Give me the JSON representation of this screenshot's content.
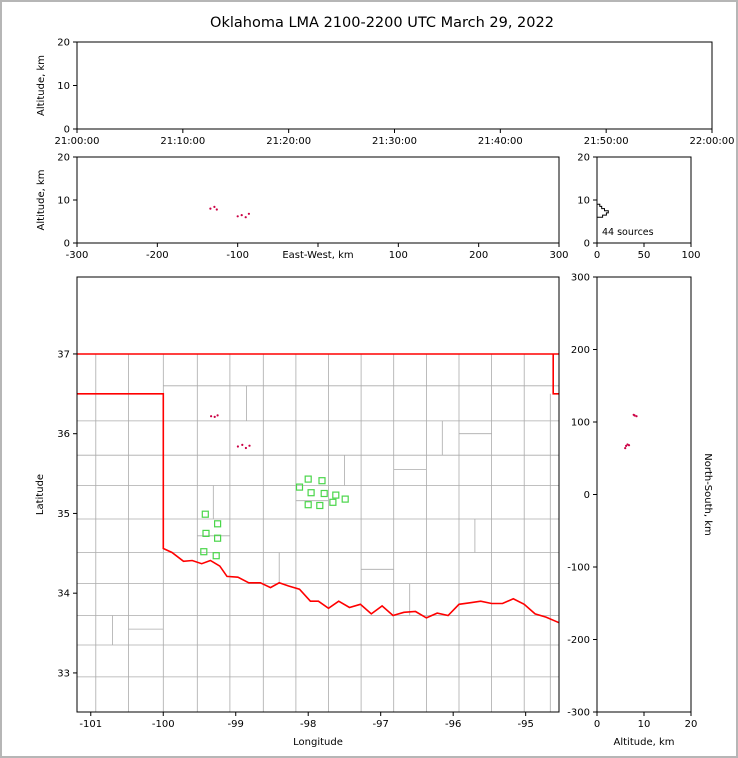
{
  "title": "Oklahoma LMA 2100-2200 UTC March 29, 2022",
  "colors": {
    "background": "#ffffff",
    "outer_border": "#b6b6b6",
    "axis": "#000000",
    "county_line": "#ababab",
    "state_border": "#ff0000",
    "station_marker": "#4ad64a",
    "source_point": "#cc0044",
    "histogram_line": "#000000"
  },
  "chart_data": {
    "type": "scatter",
    "title": "Oklahoma LMA 2100-2200 UTC March 29, 2022",
    "source_count_label": "44 sources",
    "stations": [
      {
        "lon": -98.0,
        "lat": 35.43
      },
      {
        "lon": -97.81,
        "lat": 35.41
      },
      {
        "lon": -98.12,
        "lat": 35.33
      },
      {
        "lon": -97.96,
        "lat": 35.26
      },
      {
        "lon": -97.78,
        "lat": 35.25
      },
      {
        "lon": -97.62,
        "lat": 35.23
      },
      {
        "lon": -98.0,
        "lat": 35.11
      },
      {
        "lon": -97.84,
        "lat": 35.1
      },
      {
        "lon": -97.66,
        "lat": 35.14
      },
      {
        "lon": -97.49,
        "lat": 35.18
      },
      {
        "lon": -99.42,
        "lat": 34.99
      },
      {
        "lon": -99.25,
        "lat": 34.87
      },
      {
        "lon": -99.41,
        "lat": 34.75
      },
      {
        "lon": -99.25,
        "lat": 34.69
      },
      {
        "lon": -99.44,
        "lat": 34.52
      },
      {
        "lon": -99.27,
        "lat": 34.47
      }
    ],
    "sources": [
      {
        "lon": -99.34,
        "lat": 36.22,
        "ew_km": -134,
        "ns_km": 109,
        "alt_km": 8.0
      },
      {
        "lon": -99.29,
        "lat": 36.21,
        "ew_km": -129,
        "ns_km": 108,
        "alt_km": 8.4
      },
      {
        "lon": -99.25,
        "lat": 36.23,
        "ew_km": -126,
        "ns_km": 110,
        "alt_km": 7.8
      },
      {
        "lon": -98.97,
        "lat": 35.84,
        "ew_km": -100,
        "ns_km": 67,
        "alt_km": 6.2
      },
      {
        "lon": -98.91,
        "lat": 35.86,
        "ew_km": -95,
        "ns_km": 69,
        "alt_km": 6.5
      },
      {
        "lon": -98.86,
        "lat": 35.82,
        "ew_km": -90,
        "ns_km": 64,
        "alt_km": 6.0
      },
      {
        "lon": -98.81,
        "lat": 35.85,
        "ew_km": -86,
        "ns_km": 68,
        "alt_km": 6.8
      }
    ],
    "histogram": {
      "orientation": "horizontal",
      "alt_bin_edges_km": [
        6,
        6.5,
        7,
        7.5,
        8,
        8.5,
        9
      ],
      "counts": [
        6,
        10,
        12,
        8,
        5,
        3
      ]
    },
    "panels": [
      {
        "id": "time-altitude",
        "box": [
          75,
          40,
          710,
          127
        ],
        "xlim": [
          0,
          3600
        ],
        "xticks": [
          0,
          600,
          1200,
          1800,
          2400,
          3000,
          3600
        ],
        "xtick_labels": [
          "21:00:00",
          "21:10:00",
          "21:20:00",
          "21:30:00",
          "21:40:00",
          "21:50:00",
          "22:00:00"
        ],
        "ylim": [
          0,
          20
        ],
        "yticks": [
          0,
          10,
          20
        ],
        "ylabel": "Altitude, km",
        "scatter": []
      },
      {
        "id": "ew-altitude",
        "box": [
          75,
          155,
          557,
          241
        ],
        "xlim": [
          -300,
          300
        ],
        "xticks": [
          -300,
          -200,
          -100,
          0,
          100,
          200,
          300
        ],
        "xtick_labels": [
          "-300",
          "-200",
          "-100",
          "",
          "100",
          "200",
          "300"
        ],
        "xlabel": "East-West, km",
        "xlabel_dy": 15,
        "ylim": [
          0,
          20
        ],
        "yticks": [
          0,
          10,
          20
        ],
        "ylabel": "Altitude, km",
        "scatter": [
          {
            "from": "sources",
            "xf": "ew_km",
            "yf": "alt_km",
            "shape": "dot"
          }
        ]
      },
      {
        "id": "altitude-histogram",
        "box": [
          595,
          155,
          689,
          241
        ],
        "xlim": [
          0,
          100
        ],
        "xticks": [
          0,
          50,
          100
        ],
        "ylim": [
          0,
          20
        ],
        "yticks": [
          0,
          10,
          20
        ],
        "histogram": true
      },
      {
        "id": "map",
        "box": [
          75,
          275,
          557,
          710
        ],
        "xlim": [
          -101.19,
          -94.54
        ],
        "xticks": [
          -101,
          -100,
          -99,
          -98,
          -97,
          -96,
          -95
        ],
        "xlabel": "Longitude",
        "xlabel_dy": 33,
        "ylim": [
          32.51,
          37.965
        ],
        "yticks": [
          33,
          34,
          35,
          36,
          37
        ],
        "ylabel": "Latitude",
        "ylabel_dx": 34,
        "map": true,
        "scatter": [
          {
            "from": "stations",
            "xf": "lon",
            "yf": "lat",
            "shape": "square"
          },
          {
            "from": "sources",
            "xf": "lon",
            "yf": "lat",
            "shape": "dot"
          }
        ]
      },
      {
        "id": "ns-altitude",
        "box": [
          595,
          275,
          689,
          710
        ],
        "xlim": [
          0,
          20
        ],
        "xticks": [
          0,
          10,
          20
        ],
        "xlabel": "Altitude, km",
        "xlabel_dy": 33,
        "ylim": [
          -300,
          300
        ],
        "yticks": [
          -300,
          -200,
          -100,
          0,
          100,
          200,
          300
        ],
        "ylabel": "North-South, km",
        "ylabel_side": "right",
        "ylabel_dx": 14,
        "scatter": [
          {
            "from": "sources",
            "xf": "alt_km",
            "yf": "ns_km",
            "shape": "dot"
          }
        ]
      }
    ],
    "map_geometry": {
      "state_border_polylines": [
        [
          [
            -101.19,
            37.0
          ],
          [
            -94.54,
            37.0
          ]
        ],
        [
          [
            -101.19,
            36.5
          ],
          [
            -100.0,
            36.5
          ],
          [
            -100.0,
            34.56
          ],
          [
            -99.88,
            34.51
          ],
          [
            -99.72,
            34.4
          ],
          [
            -99.6,
            34.41
          ],
          [
            -99.47,
            34.37
          ],
          [
            -99.35,
            34.41
          ],
          [
            -99.22,
            34.34
          ],
          [
            -99.12,
            34.21
          ],
          [
            -98.97,
            34.2
          ],
          [
            -98.82,
            34.13
          ],
          [
            -98.66,
            34.13
          ],
          [
            -98.52,
            34.07
          ],
          [
            -98.4,
            34.13
          ],
          [
            -98.27,
            34.09
          ],
          [
            -98.12,
            34.05
          ],
          [
            -97.97,
            33.9
          ],
          [
            -97.86,
            33.9
          ],
          [
            -97.72,
            33.81
          ],
          [
            -97.58,
            33.9
          ],
          [
            -97.43,
            33.82
          ],
          [
            -97.28,
            33.86
          ],
          [
            -97.13,
            33.74
          ],
          [
            -96.98,
            33.84
          ],
          [
            -96.83,
            33.72
          ],
          [
            -96.68,
            33.76
          ],
          [
            -96.52,
            33.77
          ],
          [
            -96.37,
            33.69
          ],
          [
            -96.22,
            33.75
          ],
          [
            -96.07,
            33.72
          ],
          [
            -95.92,
            33.86
          ],
          [
            -95.77,
            33.88
          ],
          [
            -95.62,
            33.9
          ],
          [
            -95.47,
            33.87
          ],
          [
            -95.32,
            33.87
          ],
          [
            -95.17,
            33.93
          ],
          [
            -95.02,
            33.86
          ],
          [
            -94.87,
            33.74
          ],
          [
            -94.72,
            33.7
          ],
          [
            -94.54,
            33.63
          ]
        ],
        [
          [
            -94.62,
            37.0
          ],
          [
            -94.62,
            36.5
          ],
          [
            -94.54,
            36.5
          ]
        ]
      ],
      "county_segments": [
        [
          -100.93,
          32.51,
          -100.93,
          37.0
        ],
        [
          -100.48,
          32.51,
          -100.48,
          37.0
        ],
        [
          -100.0,
          32.51,
          -100.0,
          34.56
        ],
        [
          -100.0,
          36.5,
          -100.0,
          37.0
        ],
        [
          -99.53,
          32.51,
          -99.53,
          37.0
        ],
        [
          -99.08,
          32.51,
          -99.08,
          37.0
        ],
        [
          -98.62,
          32.51,
          -98.62,
          37.0
        ],
        [
          -98.17,
          32.51,
          -98.17,
          37.0
        ],
        [
          -97.72,
          32.51,
          -97.72,
          37.0
        ],
        [
          -97.27,
          32.51,
          -97.27,
          37.0
        ],
        [
          -96.82,
          32.51,
          -96.82,
          37.0
        ],
        [
          -96.37,
          32.51,
          -96.37,
          37.0
        ],
        [
          -95.92,
          32.51,
          -95.92,
          37.0
        ],
        [
          -95.47,
          32.51,
          -95.47,
          37.0
        ],
        [
          -95.02,
          32.51,
          -95.02,
          37.0
        ],
        [
          -94.66,
          32.51,
          -94.66,
          36.5
        ],
        [
          -100.0,
          36.6,
          -94.54,
          36.6
        ],
        [
          -101.19,
          36.16,
          -94.54,
          36.16
        ],
        [
          -101.19,
          35.73,
          -94.54,
          35.73
        ],
        [
          -101.19,
          35.35,
          -94.54,
          35.35
        ],
        [
          -101.19,
          34.93,
          -94.54,
          34.93
        ],
        [
          -101.19,
          34.51,
          -94.54,
          34.51
        ],
        [
          -101.19,
          34.12,
          -94.54,
          34.12
        ],
        [
          -101.19,
          33.72,
          -94.54,
          33.72
        ],
        [
          -101.19,
          33.35,
          -94.54,
          33.35
        ],
        [
          -101.19,
          32.95,
          -94.54,
          32.95
        ],
        [
          -99.31,
          34.93,
          -99.31,
          35.35
        ],
        [
          -98.4,
          34.12,
          -98.4,
          34.51
        ],
        [
          -97.5,
          35.35,
          -97.5,
          35.73
        ],
        [
          -96.6,
          33.72,
          -96.6,
          34.12
        ],
        [
          -95.7,
          34.51,
          -95.7,
          34.93
        ],
        [
          -98.85,
          36.16,
          -98.85,
          36.6
        ],
        [
          -96.15,
          35.73,
          -96.15,
          36.16
        ],
        [
          -100.7,
          33.35,
          -100.7,
          33.72
        ],
        [
          -98.17,
          35.16,
          -97.72,
          35.16
        ],
        [
          -99.53,
          34.72,
          -99.08,
          34.72
        ],
        [
          -96.82,
          35.55,
          -96.37,
          35.55
        ],
        [
          -100.48,
          33.55,
          -100.0,
          33.55
        ],
        [
          -95.92,
          36.0,
          -95.47,
          36.0
        ],
        [
          -97.27,
          34.3,
          -96.82,
          34.3
        ]
      ]
    }
  }
}
